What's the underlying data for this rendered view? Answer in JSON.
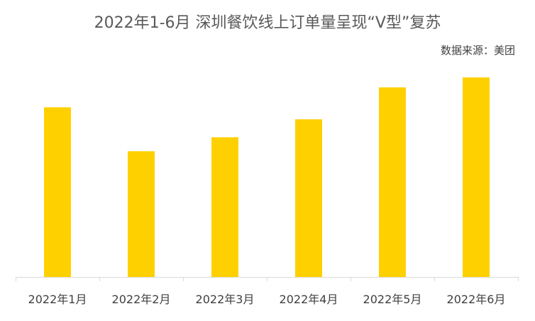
{
  "title": "2022年1-6月 深圳餐饮线上订单量呈现“V型”复苏",
  "source": "数据来源：美团",
  "chart_data": {
    "type": "bar",
    "categories": [
      "2022年1月",
      "2022年2月",
      "2022年3月",
      "2022年4月",
      "2022年5月",
      "2022年6月"
    ],
    "values": [
      85,
      63,
      70,
      79,
      95,
      100
    ],
    "ylim": [
      0,
      100
    ],
    "grid": false,
    "legend": "none",
    "bar_color": "#FFD000",
    "axis_color": "#D9D9D9"
  }
}
